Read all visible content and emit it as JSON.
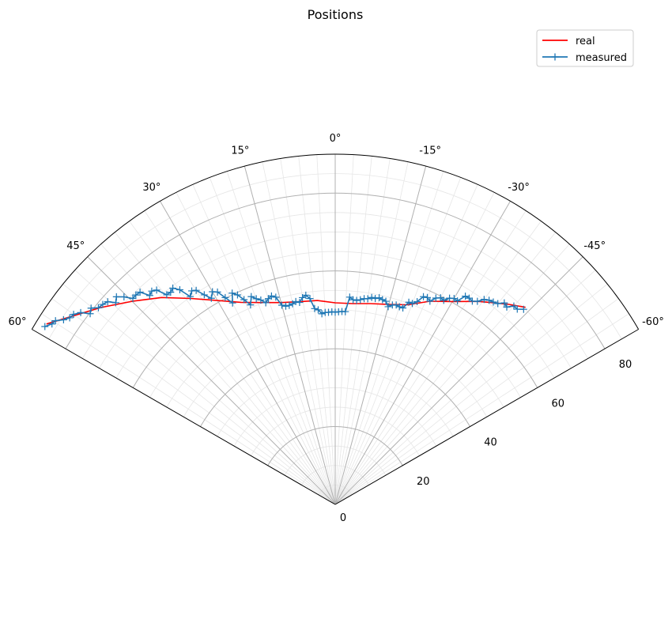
{
  "chart_data": {
    "type": "polar-line",
    "title": "Positions",
    "theta_range_deg": [
      -60,
      60
    ],
    "theta_zero": "top",
    "theta_direction": "counterclockwise",
    "r_range": [
      0,
      90
    ],
    "theta_ticks": [
      {
        "value": 60,
        "label": "60°"
      },
      {
        "value": 45,
        "label": "45°"
      },
      {
        "value": 30,
        "label": "30°"
      },
      {
        "value": 15,
        "label": "15°"
      },
      {
        "value": 0,
        "label": "0°"
      },
      {
        "value": -15,
        "label": "-15°"
      },
      {
        "value": -30,
        "label": "-30°"
      },
      {
        "value": -45,
        "label": "-45°"
      },
      {
        "value": -60,
        "label": "-60°"
      }
    ],
    "r_ticks": [
      {
        "value": 0,
        "label": "0"
      },
      {
        "value": 20,
        "label": "20"
      },
      {
        "value": 40,
        "label": "40"
      },
      {
        "value": 60,
        "label": "60"
      },
      {
        "value": 80,
        "label": "80"
      }
    ],
    "grid": true,
    "minor_grid": true,
    "legend_position": "top-right",
    "series": [
      {
        "name": "real",
        "color": "#ff0000",
        "marker": "none",
        "points": [
          [
            58,
            87.5
          ],
          [
            50,
            78.7
          ],
          [
            45,
            73.8
          ],
          [
            40,
            69.4
          ],
          [
            35,
            64.6
          ],
          [
            30,
            60.5
          ],
          [
            25,
            57.3
          ],
          [
            20,
            55.2
          ],
          [
            15,
            53.7
          ],
          [
            10,
            52.9
          ],
          [
            5,
            52.6
          ],
          [
            0,
            51.8
          ],
          [
            -5,
            51.8
          ],
          [
            -10,
            52.4
          ],
          [
            -15,
            53.2
          ],
          [
            -20,
            54.6
          ],
          [
            -25,
            57.6
          ],
          [
            -30,
            60.2
          ],
          [
            -35,
            63.7
          ],
          [
            -38,
            65.8
          ],
          [
            -41,
            68.1
          ],
          [
            -44,
            70.4
          ]
        ]
      },
      {
        "name": "measured",
        "color": "#1f77b4",
        "marker": "+",
        "points": [
          [
            58.5,
            87.5
          ],
          [
            57.5,
            86.3
          ],
          [
            56.7,
            86.0
          ],
          [
            55.8,
            84.4
          ],
          [
            54.9,
            83.4
          ],
          [
            54.0,
            83.1
          ],
          [
            53.0,
            81.9
          ],
          [
            52.1,
            79.8
          ],
          [
            51.2,
            80.5
          ],
          [
            50.3,
            79.1
          ],
          [
            49.3,
            78.8
          ],
          [
            48.3,
            78.3
          ],
          [
            47.4,
            76.6
          ],
          [
            46.5,
            77.5
          ],
          [
            45.5,
            76.1
          ],
          [
            44.5,
            74.2
          ],
          [
            43.6,
            74.3
          ],
          [
            42.6,
            74.1
          ],
          [
            41.6,
            71.8
          ],
          [
            40.7,
            72.3
          ],
          [
            39.8,
            71.7
          ],
          [
            38.8,
            69.1
          ],
          [
            37.8,
            69.0
          ],
          [
            36.9,
            69.5
          ],
          [
            35.9,
            68.1
          ],
          [
            34.9,
            65.1
          ],
          [
            33.9,
            66.1
          ],
          [
            33.0,
            65.6
          ],
          [
            32.0,
            63.5
          ],
          [
            31.0,
            61.8
          ],
          [
            30.0,
            63.1
          ],
          [
            29.0,
            62.4
          ],
          [
            28.0,
            60.2
          ],
          [
            27.0,
            58.1
          ],
          [
            26.0,
            60.4
          ],
          [
            25.0,
            59.4
          ],
          [
            24.0,
            57.6
          ],
          [
            23.0,
            55.7
          ],
          [
            22.0,
            57.6
          ],
          [
            21.0,
            56.6
          ],
          [
            20.0,
            55.9
          ],
          [
            19.0,
            54.8
          ],
          [
            18.0,
            55.6
          ],
          [
            17.0,
            56.0
          ],
          [
            16.0,
            55.4
          ],
          [
            15.0,
            53.0
          ],
          [
            14.0,
            52.5
          ],
          [
            13.0,
            52.5
          ],
          [
            12.0,
            52.7
          ],
          [
            11.0,
            53.1
          ],
          [
            10.0,
            52.7
          ],
          [
            9.0,
            53.8
          ],
          [
            8.0,
            54.3
          ],
          [
            7.0,
            53.3
          ],
          [
            6.0,
            50.6
          ],
          [
            5.0,
            50.2
          ],
          [
            4.0,
            49.1
          ],
          [
            3.0,
            49.4
          ],
          [
            2.0,
            49.4
          ],
          [
            1.0,
            49.5
          ],
          [
            0.0,
            49.4
          ],
          [
            -1.0,
            49.5
          ],
          [
            -2.0,
            49.6
          ],
          [
            -3.0,
            49.6
          ],
          [
            -4.0,
            53.4
          ],
          [
            -5.0,
            52.8
          ],
          [
            -6.0,
            52.7
          ],
          [
            -7.0,
            53.0
          ],
          [
            -8.0,
            53.4
          ],
          [
            -9.0,
            53.5
          ],
          [
            -10.0,
            54.0
          ],
          [
            -11.0,
            53.9
          ],
          [
            -12.0,
            54.3
          ],
          [
            -13.0,
            54.0
          ],
          [
            -14.0,
            53.8
          ],
          [
            -15.0,
            52.6
          ],
          [
            -16.0,
            53.3
          ],
          [
            -17.0,
            53.6
          ],
          [
            -18.0,
            53.4
          ],
          [
            -19.0,
            53.4
          ],
          [
            -20.0,
            55.3
          ],
          [
            -21.0,
            55.3
          ],
          [
            -22.0,
            56.2
          ],
          [
            -23.0,
            58.0
          ],
          [
            -24.0,
            58.2
          ],
          [
            -25.0,
            57.6
          ],
          [
            -26.0,
            59.0
          ],
          [
            -27.0,
            59.6
          ],
          [
            -28.0,
            59.4
          ],
          [
            -29.0,
            60.6
          ],
          [
            -30.0,
            61.1
          ],
          [
            -31.0,
            61.0
          ],
          [
            -32.0,
            63.1
          ],
          [
            -33.0,
            63.2
          ],
          [
            -34.0,
            63.0
          ],
          [
            -35.0,
            63.7
          ],
          [
            -36.0,
            65.1
          ],
          [
            -37.0,
            65.7
          ],
          [
            -38.0,
            66.0
          ],
          [
            -39.0,
            66.4
          ],
          [
            -40.0,
            67.6
          ],
          [
            -41.0,
            67.2
          ],
          [
            -42.0,
            68.6
          ],
          [
            -43.0,
            68.6
          ],
          [
            -44.0,
            69.7
          ]
        ]
      }
    ]
  }
}
